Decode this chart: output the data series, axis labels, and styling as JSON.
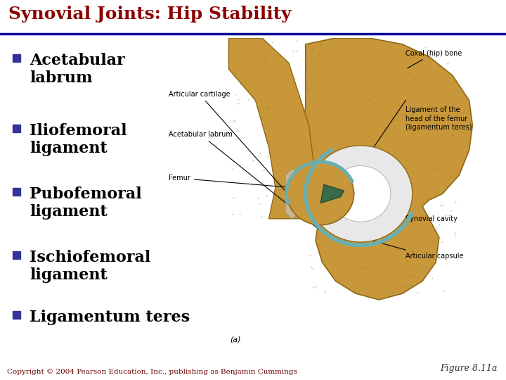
{
  "title": "Synovial Joints: Hip Stability",
  "title_color": "#8B0000",
  "title_fontsize": 18,
  "header_line_color": "#000099",
  "background_color": "#FFFFFF",
  "bullet_color": "#333399",
  "bullet_items": [
    "Acetabular\nlabrum",
    "Iliofemoral\nligament",
    "Pubofemoral\nligament",
    "Ischiofemoral\nligament",
    "Ligamentum teres"
  ],
  "bullet_fontsize": 16,
  "figure_caption": "Figure 8.11a",
  "copyright_text": "Copyright © 2004 Pearson Education, Inc., publishing as Benjamin Cummings",
  "copyright_fontsize": 7.5,
  "figure_caption_fontsize": 9,
  "bone_color": "#C8973A",
  "bone_dark": "#8B6914",
  "cartilage_color": "#6AAFAF",
  "ligament_color": "#3A6A4A",
  "label_fontsize": 7,
  "diagram_labels_left": [
    "Articular cartilage",
    "Acetabular labrum",
    "Femur"
  ],
  "diagram_labels_right": [
    "Coxal (hip) bone",
    "Ligament of the\nhead of the femur\n(ligamentum teres)",
    "Synovial cavity",
    "Articular capsule"
  ]
}
